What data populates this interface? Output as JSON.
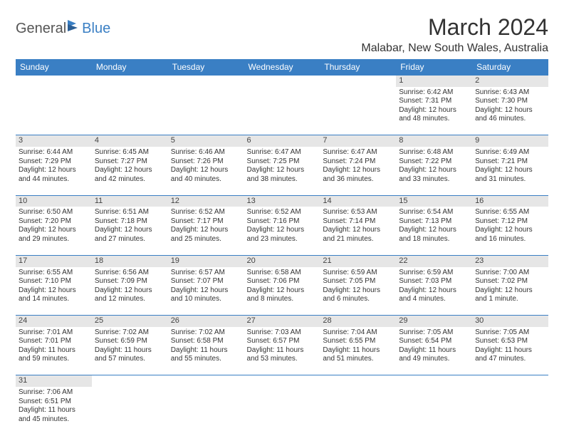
{
  "logo": {
    "text1": "General",
    "text2": "Blue"
  },
  "title": "March 2024",
  "location": "Malabar, New South Wales, Australia",
  "colors": {
    "header_bg": "#3a7fc4",
    "header_text": "#ffffff",
    "daynum_bg": "#e6e6e6",
    "border": "#3a7fc4",
    "body_text": "#333333",
    "page_bg": "#ffffff"
  },
  "weekdays": [
    "Sunday",
    "Monday",
    "Tuesday",
    "Wednesday",
    "Thursday",
    "Friday",
    "Saturday"
  ],
  "weeks": [
    {
      "days": [
        null,
        null,
        null,
        null,
        null,
        {
          "n": "1",
          "sunrise": "6:42 AM",
          "sunset": "7:31 PM",
          "dl": "12 hours and 48 minutes."
        },
        {
          "n": "2",
          "sunrise": "6:43 AM",
          "sunset": "7:30 PM",
          "dl": "12 hours and 46 minutes."
        }
      ]
    },
    {
      "days": [
        {
          "n": "3",
          "sunrise": "6:44 AM",
          "sunset": "7:29 PM",
          "dl": "12 hours and 44 minutes."
        },
        {
          "n": "4",
          "sunrise": "6:45 AM",
          "sunset": "7:27 PM",
          "dl": "12 hours and 42 minutes."
        },
        {
          "n": "5",
          "sunrise": "6:46 AM",
          "sunset": "7:26 PM",
          "dl": "12 hours and 40 minutes."
        },
        {
          "n": "6",
          "sunrise": "6:47 AM",
          "sunset": "7:25 PM",
          "dl": "12 hours and 38 minutes."
        },
        {
          "n": "7",
          "sunrise": "6:47 AM",
          "sunset": "7:24 PM",
          "dl": "12 hours and 36 minutes."
        },
        {
          "n": "8",
          "sunrise": "6:48 AM",
          "sunset": "7:22 PM",
          "dl": "12 hours and 33 minutes."
        },
        {
          "n": "9",
          "sunrise": "6:49 AM",
          "sunset": "7:21 PM",
          "dl": "12 hours and 31 minutes."
        }
      ]
    },
    {
      "days": [
        {
          "n": "10",
          "sunrise": "6:50 AM",
          "sunset": "7:20 PM",
          "dl": "12 hours and 29 minutes."
        },
        {
          "n": "11",
          "sunrise": "6:51 AM",
          "sunset": "7:18 PM",
          "dl": "12 hours and 27 minutes."
        },
        {
          "n": "12",
          "sunrise": "6:52 AM",
          "sunset": "7:17 PM",
          "dl": "12 hours and 25 minutes."
        },
        {
          "n": "13",
          "sunrise": "6:52 AM",
          "sunset": "7:16 PM",
          "dl": "12 hours and 23 minutes."
        },
        {
          "n": "14",
          "sunrise": "6:53 AM",
          "sunset": "7:14 PM",
          "dl": "12 hours and 21 minutes."
        },
        {
          "n": "15",
          "sunrise": "6:54 AM",
          "sunset": "7:13 PM",
          "dl": "12 hours and 18 minutes."
        },
        {
          "n": "16",
          "sunrise": "6:55 AM",
          "sunset": "7:12 PM",
          "dl": "12 hours and 16 minutes."
        }
      ]
    },
    {
      "days": [
        {
          "n": "17",
          "sunrise": "6:55 AM",
          "sunset": "7:10 PM",
          "dl": "12 hours and 14 minutes."
        },
        {
          "n": "18",
          "sunrise": "6:56 AM",
          "sunset": "7:09 PM",
          "dl": "12 hours and 12 minutes."
        },
        {
          "n": "19",
          "sunrise": "6:57 AM",
          "sunset": "7:07 PM",
          "dl": "12 hours and 10 minutes."
        },
        {
          "n": "20",
          "sunrise": "6:58 AM",
          "sunset": "7:06 PM",
          "dl": "12 hours and 8 minutes."
        },
        {
          "n": "21",
          "sunrise": "6:59 AM",
          "sunset": "7:05 PM",
          "dl": "12 hours and 6 minutes."
        },
        {
          "n": "22",
          "sunrise": "6:59 AM",
          "sunset": "7:03 PM",
          "dl": "12 hours and 4 minutes."
        },
        {
          "n": "23",
          "sunrise": "7:00 AM",
          "sunset": "7:02 PM",
          "dl": "12 hours and 1 minute."
        }
      ]
    },
    {
      "days": [
        {
          "n": "24",
          "sunrise": "7:01 AM",
          "sunset": "7:01 PM",
          "dl": "11 hours and 59 minutes."
        },
        {
          "n": "25",
          "sunrise": "7:02 AM",
          "sunset": "6:59 PM",
          "dl": "11 hours and 57 minutes."
        },
        {
          "n": "26",
          "sunrise": "7:02 AM",
          "sunset": "6:58 PM",
          "dl": "11 hours and 55 minutes."
        },
        {
          "n": "27",
          "sunrise": "7:03 AM",
          "sunset": "6:57 PM",
          "dl": "11 hours and 53 minutes."
        },
        {
          "n": "28",
          "sunrise": "7:04 AM",
          "sunset": "6:55 PM",
          "dl": "11 hours and 51 minutes."
        },
        {
          "n": "29",
          "sunrise": "7:05 AM",
          "sunset": "6:54 PM",
          "dl": "11 hours and 49 minutes."
        },
        {
          "n": "30",
          "sunrise": "7:05 AM",
          "sunset": "6:53 PM",
          "dl": "11 hours and 47 minutes."
        }
      ]
    },
    {
      "days": [
        {
          "n": "31",
          "sunrise": "7:06 AM",
          "sunset": "6:51 PM",
          "dl": "11 hours and 45 minutes."
        },
        null,
        null,
        null,
        null,
        null,
        null
      ]
    }
  ]
}
